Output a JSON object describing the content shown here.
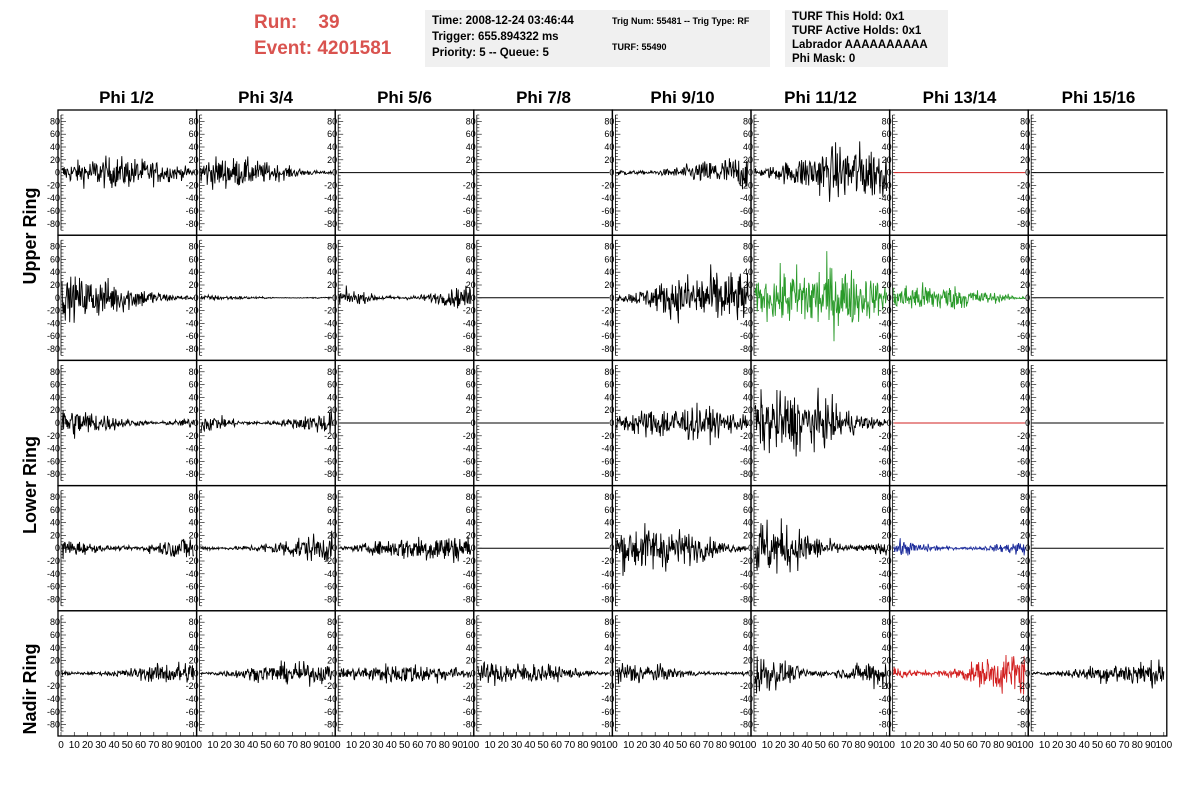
{
  "header": {
    "run_label": "Run:",
    "run_value": "39",
    "event_label": "Event:",
    "event_value": "4201581",
    "time": "Time: 2008-12-24 03:46:44",
    "trigger": "Trigger: 655.894322 ms",
    "priority": "Priority: 5 -- Queue: 5",
    "trig_num": "Trig Num: 55481 -- Trig Type: RF",
    "turf": "TURF: 55490",
    "turf_this_hold": "TURF This Hold: 0x1",
    "turf_active_holds": "TURF Active Holds: 0x1",
    "labrador": "Labrador AAAAAAAAAA",
    "phi_mask": "Phi Mask: 0"
  },
  "columns": [
    "Phi 1/2",
    "Phi 3/4",
    "Phi 5/6",
    "Phi 7/8",
    "Phi 9/10",
    "Phi 11/12",
    "Phi 13/14",
    "Phi 15/16"
  ],
  "rings": [
    "Upper Ring",
    "Lower Ring",
    "Nadir Ring"
  ],
  "chart_data": {
    "type": "line",
    "ylim": [
      -90,
      90
    ],
    "xlim": [
      0,
      100
    ],
    "ytick_labels": [
      "80",
      "60",
      "40",
      "20",
      "0",
      "-20",
      "-40",
      "-60",
      "-80"
    ],
    "xtick_labels": [
      "0",
      "10",
      "20",
      "30",
      "40",
      "50",
      "60",
      "70",
      "80",
      "90",
      "100"
    ],
    "colors": {
      "black": "#000000",
      "green": "#2a9a2a",
      "red": "#d22020",
      "blue": "#1a2a9a"
    },
    "rows": [
      {
        "ring": "Upper Ring",
        "panels": [
          {
            "amp": 15,
            "color": "black"
          },
          {
            "amp": 15,
            "color": "black"
          },
          {
            "amp": 0,
            "color": "black"
          },
          {
            "amp": 0,
            "color": "black"
          },
          {
            "amp": 17,
            "color": "black"
          },
          {
            "amp": 28,
            "color": "black"
          },
          {
            "amp": 0,
            "color": "red"
          },
          {
            "amp": 0,
            "color": "black"
          }
        ]
      },
      {
        "ring": "Upper Ring",
        "panels": [
          {
            "amp": 20,
            "color": "black"
          },
          {
            "amp": 3,
            "color": "black"
          },
          {
            "amp": 16,
            "color": "black"
          },
          {
            "amp": 0,
            "color": "black"
          },
          {
            "amp": 27,
            "color": "black"
          },
          {
            "amp": 33,
            "color": "green"
          },
          {
            "amp": 14,
            "color": "green"
          },
          {
            "amp": 0,
            "color": "black"
          }
        ]
      },
      {
        "ring": "Lower Ring",
        "panels": [
          {
            "amp": 17,
            "color": "black"
          },
          {
            "amp": 17,
            "color": "black"
          },
          {
            "amp": 0,
            "color": "black"
          },
          {
            "amp": 0,
            "color": "black"
          },
          {
            "amp": 17,
            "color": "black"
          },
          {
            "amp": 30,
            "color": "black"
          },
          {
            "amp": 0,
            "color": "red"
          },
          {
            "amp": 0,
            "color": "black"
          }
        ]
      },
      {
        "ring": "Lower Ring",
        "panels": [
          {
            "amp": 18,
            "color": "black"
          },
          {
            "amp": 14,
            "color": "black"
          },
          {
            "amp": 14,
            "color": "black"
          },
          {
            "amp": 0,
            "color": "black"
          },
          {
            "amp": 22,
            "color": "black"
          },
          {
            "amp": 30,
            "color": "black"
          },
          {
            "amp": 12,
            "color": "blue"
          },
          {
            "amp": 0,
            "color": "black"
          }
        ]
      },
      {
        "ring": "Nadir Ring",
        "panels": [
          {
            "amp": 12,
            "color": "black"
          },
          {
            "amp": 10,
            "color": "black"
          },
          {
            "amp": 10,
            "color": "black"
          },
          {
            "amp": 11,
            "color": "black"
          },
          {
            "amp": 12,
            "color": "black"
          },
          {
            "amp": 30,
            "color": "black"
          },
          {
            "amp": 24,
            "color": "red"
          },
          {
            "amp": 12,
            "color": "black"
          }
        ]
      }
    ]
  }
}
